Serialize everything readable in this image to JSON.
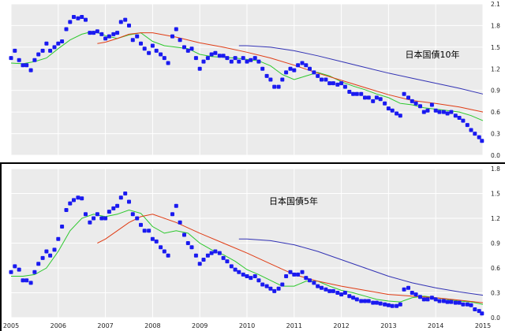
{
  "colors": {
    "bond_marker": "#1a1af0",
    "short_ma": "#2cc82c",
    "mid_ma": "#e03c14",
    "long_ma": "#3232b4",
    "plot_bg": "#ebebeb",
    "grid": "#ffffff",
    "divider": "#000000"
  },
  "chart_data": [
    {
      "type": "scatter",
      "title": "日本国債10年",
      "xlabel": "",
      "ylabel": "",
      "xlim": [
        2005.0,
        2015.0
      ],
      "ylim": [
        0.0,
        2.1
      ],
      "yticks": [
        "0.0",
        "0.3",
        "0.6",
        "0.9",
        "1.2",
        "1.5",
        "1.8",
        "2.1"
      ],
      "xticks": [],
      "grid": true,
      "series": [
        {
          "role": "monthly-yield-markers",
          "x": [
            2005.0,
            2005.08,
            2005.17,
            2005.25,
            2005.33,
            2005.42,
            2005.5,
            2005.58,
            2005.67,
            2005.75,
            2005.83,
            2005.92,
            2006.0,
            2006.08,
            2006.17,
            2006.25,
            2006.33,
            2006.42,
            2006.5,
            2006.58,
            2006.67,
            2006.75,
            2006.83,
            2006.92,
            2007.0,
            2007.08,
            2007.17,
            2007.25,
            2007.33,
            2007.42,
            2007.5,
            2007.58,
            2007.67,
            2007.75,
            2007.83,
            2007.92,
            2008.0,
            2008.08,
            2008.17,
            2008.25,
            2008.33,
            2008.42,
            2008.5,
            2008.58,
            2008.67,
            2008.75,
            2008.83,
            2008.92,
            2009.0,
            2009.08,
            2009.17,
            2009.25,
            2009.33,
            2009.42,
            2009.5,
            2009.58,
            2009.67,
            2009.75,
            2009.83,
            2009.92,
            2010.0,
            2010.08,
            2010.17,
            2010.25,
            2010.33,
            2010.42,
            2010.5,
            2010.58,
            2010.67,
            2010.75,
            2010.83,
            2010.92,
            2011.0,
            2011.08,
            2011.17,
            2011.25,
            2011.33,
            2011.42,
            2011.5,
            2011.58,
            2011.67,
            2011.75,
            2011.83,
            2011.92,
            2012.0,
            2012.08,
            2012.17,
            2012.25,
            2012.33,
            2012.42,
            2012.5,
            2012.58,
            2012.67,
            2012.75,
            2012.83,
            2012.92,
            2013.0,
            2013.08,
            2013.17,
            2013.25,
            2013.33,
            2013.42,
            2013.5,
            2013.58,
            2013.67,
            2013.75,
            2013.83,
            2013.92,
            2014.0,
            2014.08,
            2014.17,
            2014.25,
            2014.33,
            2014.42,
            2014.5,
            2014.58,
            2014.67,
            2014.75,
            2014.83,
            2014.92,
            2014.98
          ],
          "values": [
            1.35,
            1.45,
            1.32,
            1.25,
            1.25,
            1.18,
            1.32,
            1.4,
            1.45,
            1.55,
            1.45,
            1.5,
            1.55,
            1.58,
            1.75,
            1.85,
            1.92,
            1.9,
            1.92,
            1.88,
            1.7,
            1.7,
            1.72,
            1.68,
            1.62,
            1.65,
            1.68,
            1.7,
            1.85,
            1.88,
            1.8,
            1.6,
            1.65,
            1.55,
            1.48,
            1.42,
            1.52,
            1.45,
            1.4,
            1.35,
            1.28,
            1.65,
            1.75,
            1.6,
            1.5,
            1.45,
            1.48,
            1.35,
            1.2,
            1.3,
            1.35,
            1.4,
            1.42,
            1.38,
            1.38,
            1.35,
            1.3,
            1.35,
            1.3,
            1.35,
            1.3,
            1.32,
            1.35,
            1.3,
            1.2,
            1.1,
            1.05,
            0.95,
            0.95,
            1.05,
            1.15,
            1.2,
            1.18,
            1.25,
            1.28,
            1.25,
            1.2,
            1.15,
            1.1,
            1.05,
            1.05,
            1.0,
            1.0,
            0.98,
            1.0,
            0.95,
            0.88,
            0.85,
            0.85,
            0.85,
            0.8,
            0.8,
            0.75,
            0.8,
            0.78,
            0.72,
            0.65,
            0.62,
            0.58,
            0.55,
            0.85,
            0.8,
            0.75,
            0.72,
            0.68,
            0.6,
            0.62,
            0.7,
            0.62,
            0.6,
            0.6,
            0.58,
            0.6,
            0.55,
            0.52,
            0.48,
            0.42,
            0.35,
            0.3,
            0.25,
            0.2
          ]
        },
        {
          "role": "short-moving-average",
          "x": [
            2005.0,
            2005.25,
            2005.5,
            2005.75,
            2006.0,
            2006.25,
            2006.5,
            2006.75,
            2007.0,
            2007.25,
            2007.5,
            2007.75,
            2008.0,
            2008.25,
            2008.5,
            2008.75,
            2009.0,
            2009.25,
            2009.5,
            2009.75,
            2010.0,
            2010.25,
            2010.5,
            2010.75,
            2011.0,
            2011.25,
            2011.5,
            2011.75,
            2012.0,
            2012.25,
            2012.5,
            2012.75,
            2013.0,
            2013.25,
            2013.5,
            2013.75,
            2014.0,
            2014.25,
            2014.5,
            2014.75,
            2015.0
          ],
          "values": [
            1.28,
            1.27,
            1.3,
            1.35,
            1.48,
            1.6,
            1.68,
            1.72,
            1.66,
            1.62,
            1.67,
            1.7,
            1.58,
            1.52,
            1.5,
            1.48,
            1.4,
            1.37,
            1.36,
            1.35,
            1.33,
            1.31,
            1.24,
            1.12,
            1.05,
            1.1,
            1.15,
            1.1,
            1.02,
            0.96,
            0.91,
            0.85,
            0.8,
            0.72,
            0.7,
            0.66,
            0.64,
            0.62,
            0.6,
            0.55,
            0.48
          ]
        },
        {
          "role": "mid-moving-average",
          "x": [
            2006.83,
            2007.0,
            2007.25,
            2007.5,
            2007.75,
            2008.0,
            2008.5,
            2009.0,
            2009.5,
            2010.0,
            2010.5,
            2011.0,
            2011.5,
            2012.0,
            2012.5,
            2013.0,
            2013.5,
            2014.0,
            2014.5,
            2015.0
          ],
          "values": [
            1.55,
            1.57,
            1.62,
            1.68,
            1.7,
            1.7,
            1.64,
            1.56,
            1.5,
            1.43,
            1.35,
            1.25,
            1.14,
            1.04,
            0.94,
            0.84,
            0.76,
            0.72,
            0.67,
            0.6
          ]
        },
        {
          "role": "long-moving-average",
          "x": [
            2009.83,
            2010.0,
            2010.5,
            2011.0,
            2011.5,
            2012.0,
            2012.5,
            2013.0,
            2013.5,
            2014.0,
            2014.5,
            2015.0
          ],
          "values": [
            1.52,
            1.52,
            1.5,
            1.45,
            1.38,
            1.3,
            1.22,
            1.14,
            1.07,
            1.0,
            0.93,
            0.85
          ]
        }
      ]
    },
    {
      "type": "scatter",
      "title": "日本国債5年",
      "xlabel": "",
      "ylabel": "",
      "xlim": [
        2005.0,
        2015.0
      ],
      "ylim": [
        0.0,
        1.8
      ],
      "yticks": [
        "0.0",
        "0.3",
        "0.6",
        "0.9",
        "1.2",
        "1.5",
        "1.8"
      ],
      "xticks": [
        "2005",
        "2006",
        "2007",
        "2008",
        "2009",
        "2010",
        "2011",
        "2012",
        "2013",
        "2014",
        "2015"
      ],
      "grid": true,
      "series": [
        {
          "role": "monthly-yield-markers",
          "x": [
            2005.0,
            2005.08,
            2005.17,
            2005.25,
            2005.33,
            2005.42,
            2005.5,
            2005.58,
            2005.67,
            2005.75,
            2005.83,
            2005.92,
            2006.0,
            2006.08,
            2006.17,
            2006.25,
            2006.33,
            2006.42,
            2006.5,
            2006.58,
            2006.67,
            2006.75,
            2006.83,
            2006.92,
            2007.0,
            2007.08,
            2007.17,
            2007.25,
            2007.33,
            2007.42,
            2007.5,
            2007.58,
            2007.67,
            2007.75,
            2007.83,
            2007.92,
            2008.0,
            2008.08,
            2008.17,
            2008.25,
            2008.33,
            2008.42,
            2008.5,
            2008.58,
            2008.67,
            2008.75,
            2008.83,
            2008.92,
            2009.0,
            2009.08,
            2009.17,
            2009.25,
            2009.33,
            2009.42,
            2009.5,
            2009.58,
            2009.67,
            2009.75,
            2009.83,
            2009.92,
            2010.0,
            2010.08,
            2010.17,
            2010.25,
            2010.33,
            2010.42,
            2010.5,
            2010.58,
            2010.67,
            2010.75,
            2010.83,
            2010.92,
            2011.0,
            2011.08,
            2011.17,
            2011.25,
            2011.33,
            2011.42,
            2011.5,
            2011.58,
            2011.67,
            2011.75,
            2011.83,
            2011.92,
            2012.0,
            2012.08,
            2012.17,
            2012.25,
            2012.33,
            2012.42,
            2012.5,
            2012.58,
            2012.67,
            2012.75,
            2012.83,
            2012.92,
            2013.0,
            2013.08,
            2013.17,
            2013.25,
            2013.33,
            2013.42,
            2013.5,
            2013.58,
            2013.67,
            2013.75,
            2013.83,
            2013.92,
            2014.0,
            2014.08,
            2014.17,
            2014.25,
            2014.33,
            2014.42,
            2014.5,
            2014.58,
            2014.67,
            2014.75,
            2014.83,
            2014.92,
            2014.98
          ],
          "values": [
            0.55,
            0.62,
            0.58,
            0.45,
            0.45,
            0.42,
            0.55,
            0.65,
            0.72,
            0.8,
            0.75,
            0.82,
            0.95,
            1.1,
            1.3,
            1.38,
            1.42,
            1.45,
            1.44,
            1.25,
            1.15,
            1.2,
            1.25,
            1.2,
            1.2,
            1.28,
            1.32,
            1.35,
            1.45,
            1.5,
            1.4,
            1.25,
            1.2,
            1.12,
            1.05,
            1.05,
            0.95,
            0.92,
            0.85,
            0.8,
            0.75,
            1.25,
            1.35,
            1.15,
            1.0,
            0.9,
            0.85,
            0.75,
            0.65,
            0.7,
            0.75,
            0.78,
            0.8,
            0.78,
            0.72,
            0.68,
            0.62,
            0.58,
            0.55,
            0.52,
            0.5,
            0.48,
            0.5,
            0.45,
            0.4,
            0.38,
            0.35,
            0.32,
            0.35,
            0.4,
            0.5,
            0.55,
            0.52,
            0.52,
            0.55,
            0.48,
            0.45,
            0.42,
            0.38,
            0.36,
            0.34,
            0.32,
            0.32,
            0.3,
            0.28,
            0.3,
            0.26,
            0.24,
            0.22,
            0.2,
            0.2,
            0.2,
            0.18,
            0.18,
            0.17,
            0.16,
            0.15,
            0.14,
            0.14,
            0.16,
            0.34,
            0.36,
            0.3,
            0.28,
            0.25,
            0.22,
            0.22,
            0.24,
            0.22,
            0.2,
            0.2,
            0.19,
            0.19,
            0.18,
            0.18,
            0.16,
            0.16,
            0.15,
            0.1,
            0.08,
            0.05
          ]
        },
        {
          "role": "short-moving-average",
          "x": [
            2005.0,
            2005.25,
            2005.5,
            2005.75,
            2006.0,
            2006.25,
            2006.5,
            2006.75,
            2007.0,
            2007.25,
            2007.5,
            2007.75,
            2008.0,
            2008.25,
            2008.5,
            2008.75,
            2009.0,
            2009.25,
            2009.5,
            2009.75,
            2010.0,
            2010.25,
            2010.5,
            2010.75,
            2011.0,
            2011.25,
            2011.5,
            2011.75,
            2012.0,
            2012.25,
            2012.5,
            2012.75,
            2013.0,
            2013.25,
            2013.5,
            2013.75,
            2014.0,
            2014.25,
            2014.5,
            2014.75,
            2015.0
          ],
          "values": [
            0.5,
            0.5,
            0.52,
            0.6,
            0.8,
            1.05,
            1.2,
            1.25,
            1.22,
            1.25,
            1.3,
            1.26,
            1.1,
            1.02,
            1.05,
            1.02,
            0.9,
            0.82,
            0.76,
            0.68,
            0.58,
            0.52,
            0.45,
            0.38,
            0.38,
            0.44,
            0.44,
            0.38,
            0.33,
            0.3,
            0.26,
            0.22,
            0.2,
            0.19,
            0.24,
            0.26,
            0.24,
            0.22,
            0.2,
            0.19,
            0.16
          ]
        },
        {
          "role": "mid-moving-average",
          "x": [
            2006.83,
            2007.0,
            2007.25,
            2007.5,
            2007.75,
            2008.0,
            2008.5,
            2009.0,
            2009.5,
            2010.0,
            2010.5,
            2011.0,
            2011.5,
            2012.0,
            2012.5,
            2013.0,
            2013.5,
            2014.0,
            2014.5,
            2015.0
          ],
          "values": [
            0.9,
            0.95,
            1.05,
            1.15,
            1.22,
            1.25,
            1.15,
            1.02,
            0.9,
            0.78,
            0.65,
            0.52,
            0.44,
            0.38,
            0.33,
            0.28,
            0.26,
            0.24,
            0.21,
            0.18
          ]
        },
        {
          "role": "long-moving-average",
          "x": [
            2009.83,
            2010.0,
            2010.5,
            2011.0,
            2011.5,
            2012.0,
            2012.5,
            2013.0,
            2013.5,
            2014.0,
            2014.5,
            2015.0
          ],
          "values": [
            0.95,
            0.95,
            0.93,
            0.88,
            0.8,
            0.7,
            0.6,
            0.5,
            0.42,
            0.36,
            0.31,
            0.27
          ]
        }
      ]
    }
  ]
}
